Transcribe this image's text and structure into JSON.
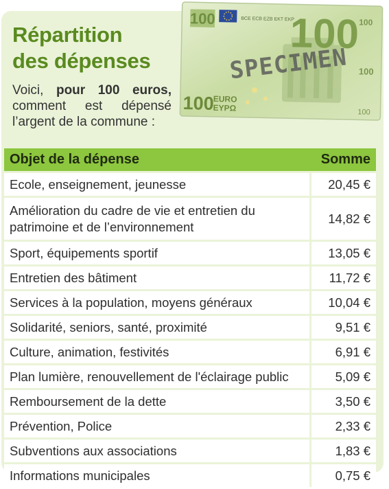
{
  "header": {
    "title_line1": "Répartition",
    "title_line2": "des dépenses",
    "intro_pre": "Voici, ",
    "intro_bold": "pour 100 euros,",
    "intro_post": " comment est dépensé l’argent de la commune :"
  },
  "banknote": {
    "value": "100",
    "currency": "EURO",
    "currency_greek": "EYPΩ",
    "stamp": "SPECIMEN",
    "serial": "BCE ECB EZB EKT EKP"
  },
  "colors": {
    "accent_green": "#5a8a1f",
    "header_green": "#8dc63f",
    "panel_bg": "#eaf3d8"
  },
  "table": {
    "columns": [
      "Objet de la dépense",
      "Somme"
    ],
    "rows": [
      {
        "label": "Ecole, enseignement, jeunesse",
        "amount": "20,45 €"
      },
      {
        "label": "Amélioration du cadre de vie et entretien du patrimoine et de l’environnement",
        "amount": "14,82 €"
      },
      {
        "label": "Sport, équipements sportif",
        "amount": "13,05 €"
      },
      {
        "label": "Entretien des bâtiment",
        "amount": "11,72 €"
      },
      {
        "label": "Services à la population, moyens généraux",
        "amount": "10,04 €"
      },
      {
        "label": "Solidarité, seniors, santé, proximité",
        "amount": "9,51 €"
      },
      {
        "label": "Culture, animation, festivités",
        "amount": "6,91 €"
      },
      {
        "label": "Plan lumière, renouvellement de l'éclairage public",
        "amount": "5,09 €"
      },
      {
        "label": "Remboursement de la dette",
        "amount": "3,50 €"
      },
      {
        "label": "Prévention, Police",
        "amount": "2,33 €"
      },
      {
        "label": "Subventions aux associations",
        "amount": "1,83 €"
      },
      {
        "label": "Informations municipales",
        "amount": "0,75 €"
      }
    ]
  }
}
